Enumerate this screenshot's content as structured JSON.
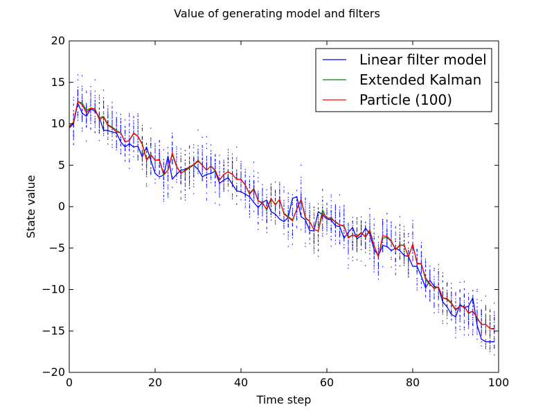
{
  "chart_data": {
    "type": "line",
    "title": "Value of generating model and filters",
    "xlabel": "Time step",
    "ylabel": "State value",
    "xlim": [
      0,
      100
    ],
    "ylim": [
      -20,
      20
    ],
    "xticks": [
      "0",
      "20",
      "40",
      "60",
      "80",
      "100"
    ],
    "yticks": [
      "20",
      "15",
      "10",
      "5",
      "0",
      "−5",
      "−10",
      "−15",
      "−20"
    ],
    "grid": false,
    "legend_position": "top-right",
    "x": [
      0,
      1,
      2,
      3,
      4,
      5,
      6,
      7,
      8,
      9,
      10,
      11,
      12,
      13,
      14,
      15,
      16,
      17,
      18,
      19,
      20,
      21,
      22,
      23,
      24,
      25,
      26,
      27,
      28,
      29,
      30,
      31,
      32,
      33,
      34,
      35,
      36,
      37,
      38,
      39,
      40,
      41,
      42,
      43,
      44,
      45,
      46,
      47,
      48,
      49,
      50,
      51,
      52,
      53,
      54,
      55,
      56,
      57,
      58,
      59,
      60,
      61,
      62,
      63,
      64,
      65,
      66,
      67,
      68,
      69,
      70,
      71,
      72,
      73,
      74,
      75,
      76,
      77,
      78,
      79,
      80,
      81,
      82,
      83,
      84,
      85,
      86,
      87,
      88,
      89,
      90,
      91,
      92,
      93,
      94,
      95,
      96,
      97,
      98,
      99
    ],
    "series": [
      {
        "name": "Linear filter model",
        "color": "#0000ff",
        "values": [
          9.5,
          10.0,
          12.5,
          11.3,
          10.9,
          11.8,
          11.5,
          10.8,
          9.2,
          9.2,
          9.0,
          8.9,
          7.8,
          7.2,
          7.6,
          7.2,
          7.3,
          6.0,
          7.2,
          5.6,
          4.0,
          3.6,
          3.8,
          6.1,
          3.3,
          3.9,
          4.4,
          4.5,
          4.8,
          5.0,
          4.5,
          3.6,
          3.9,
          4.0,
          4.3,
          2.8,
          3.2,
          3.5,
          2.7,
          1.9,
          1.8,
          1.5,
          1.2,
          0.5,
          -0.1,
          0.5,
          0.8,
          -0.6,
          -0.9,
          -1.5,
          -1.8,
          -1.3,
          1.0,
          1.2,
          -1.2,
          -1.6,
          -2.9,
          -2.9,
          -0.6,
          -1.0,
          -1.5,
          -1.6,
          -2.3,
          -2.4,
          -3.8,
          -3.1,
          -2.5,
          -3.9,
          -3.5,
          -2.6,
          -3.3,
          -5.2,
          -5.9,
          -4.7,
          -4.8,
          -5.3,
          -5.0,
          -5.3,
          -5.9,
          -6.0,
          -7.2,
          -7.2,
          -8.4,
          -9.8,
          -8.9,
          -9.6,
          -9.8,
          -11.5,
          -12.1,
          -13.0,
          -13.3,
          -11.8,
          -12.2,
          -12.0,
          -11.0,
          -14.3,
          -16.0,
          -16.3,
          -16.3,
          -16.3
        ]
      },
      {
        "name": "Extended Kalman",
        "color": "#008000",
        "values": [
          9.7,
          10.2,
          12.7,
          12.5,
          11.6,
          11.9,
          11.7,
          10.7,
          10.9,
          9.9,
          9.6,
          9.2,
          8.9,
          7.8,
          8.0,
          8.8,
          8.5,
          7.6,
          5.7,
          6.3,
          5.6,
          5.6,
          3.8,
          4.4,
          6.3,
          4.8,
          4.1,
          4.3,
          4.7,
          5.0,
          5.5,
          5.0,
          4.4,
          4.9,
          4.3,
          3.2,
          3.9,
          4.2,
          3.9,
          3.3,
          3.3,
          2.6,
          1.6,
          2.2,
          0.7,
          0.5,
          -0.4,
          0.9,
          0.3,
          0.8,
          -0.8,
          -1.2,
          -1.6,
          -0.3,
          0.8,
          -1.4,
          -1.8,
          -2.8,
          -2.9,
          -0.4,
          -1.5,
          -1.3,
          -1.9,
          -2.2,
          -2.4,
          -3.7,
          -3.4,
          -3.7,
          -3.2,
          -3.6,
          -2.8,
          -4.7,
          -6.0,
          -3.8,
          -3.7,
          -4.2,
          -5.2,
          -4.6,
          -4.7,
          -6.0,
          -4.6,
          -6.8,
          -6.9,
          -8.8,
          -9.4,
          -9.8,
          -9.7,
          -11.0,
          -11.2,
          -11.7,
          -12.5,
          -12.0,
          -12.0,
          -12.9,
          -12.6,
          -13.5,
          -14.2,
          -14.2,
          -14.7,
          -14.7
        ]
      },
      {
        "name": "Particle (100)",
        "color": "#ff0000",
        "values": [
          9.6,
          10.1,
          12.7,
          12.3,
          11.3,
          11.9,
          11.8,
          10.5,
          10.8,
          9.8,
          9.5,
          9.0,
          8.9,
          7.8,
          8.0,
          8.9,
          8.5,
          7.5,
          5.6,
          6.2,
          5.6,
          5.7,
          3.9,
          4.4,
          6.5,
          4.9,
          4.0,
          4.4,
          4.8,
          5.1,
          5.6,
          5.0,
          4.4,
          4.9,
          4.4,
          3.2,
          3.9,
          4.2,
          3.9,
          3.3,
          3.3,
          2.6,
          1.5,
          2.1,
          0.7,
          0.4,
          -0.3,
          1.0,
          0.2,
          0.9,
          -0.9,
          -1.3,
          -1.7,
          -0.3,
          0.9,
          -1.3,
          -1.8,
          -2.8,
          -2.9,
          -0.8,
          -1.3,
          -1.5,
          -1.8,
          -2.2,
          -2.3,
          -3.8,
          -3.4,
          -3.6,
          -3.1,
          -3.7,
          -2.9,
          -4.7,
          -6.1,
          -3.5,
          -3.6,
          -4.1,
          -5.2,
          -4.7,
          -4.6,
          -6.1,
          -4.5,
          -6.9,
          -6.9,
          -8.6,
          -9.3,
          -9.9,
          -9.7,
          -11.0,
          -11.1,
          -11.6,
          -12.4,
          -12.0,
          -12.1,
          -12.8,
          -12.6,
          -13.4,
          -14.2,
          -14.2,
          -14.7,
          -14.8
        ]
      }
    ],
    "particles": {
      "name": "particle samples",
      "color": "#0000ff",
      "per_step": 100,
      "spread": 4.0
    }
  }
}
